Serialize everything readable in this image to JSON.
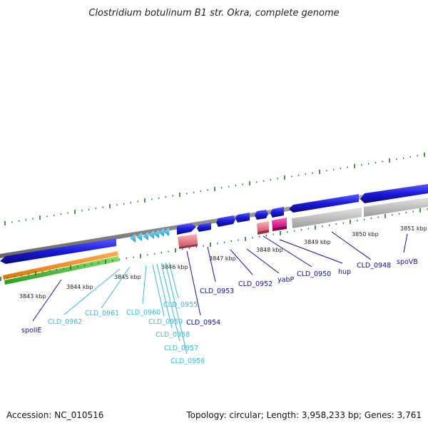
{
  "title": "Clostridium botulinum B1 str. Okra, complete genome",
  "footer": {
    "accession": "Accession: NC_010516",
    "summary": "Topology: circular; Length: 3,958,233 bp; Genes: 3,761"
  },
  "colors": {
    "named_gene": "#1010a0",
    "hypothetical_gene": "#33bbdd",
    "cds_blue": "#1a1adc",
    "cds_light": "#33bbee",
    "pink": "#ee8899",
    "magenta": "#ee1199",
    "gray_band": "#bbbbbb",
    "orange_band": "#ff8800",
    "green_band": "#44bb33",
    "tick": "#227722"
  },
  "scale_labels": [
    "3843 kbp",
    "3844 kbp",
    "3845 kbp",
    "3846 kbp",
    "3847 kbp",
    "3848 kbp",
    "3849 kbp",
    "3850 kbp",
    "3851 kbp"
  ],
  "genes": [
    {
      "name": "spoIIE",
      "type": "named"
    },
    {
      "name": "CLD_0962",
      "type": "hypothetical"
    },
    {
      "name": "CLD_0961",
      "type": "hypothetical"
    },
    {
      "name": "CLD_0960",
      "type": "hypothetical"
    },
    {
      "name": "CLD_0959",
      "type": "hypothetical"
    },
    {
      "name": "CLD_0958",
      "type": "hypothetical"
    },
    {
      "name": "CLD_0957",
      "type": "hypothetical"
    },
    {
      "name": "CLD_0956",
      "type": "hypothetical"
    },
    {
      "name": "CLD_0955",
      "type": "hypothetical"
    },
    {
      "name": "CLD_0954",
      "type": "named"
    },
    {
      "name": "CLD_0953",
      "type": "named"
    },
    {
      "name": "CLD_0952",
      "type": "named"
    },
    {
      "name": "yabP",
      "type": "named"
    },
    {
      "name": "CLD_0950",
      "type": "named"
    },
    {
      "name": "hup",
      "type": "named"
    },
    {
      "name": "CLD_0948",
      "type": "named"
    },
    {
      "name": "spoVB",
      "type": "named"
    }
  ]
}
